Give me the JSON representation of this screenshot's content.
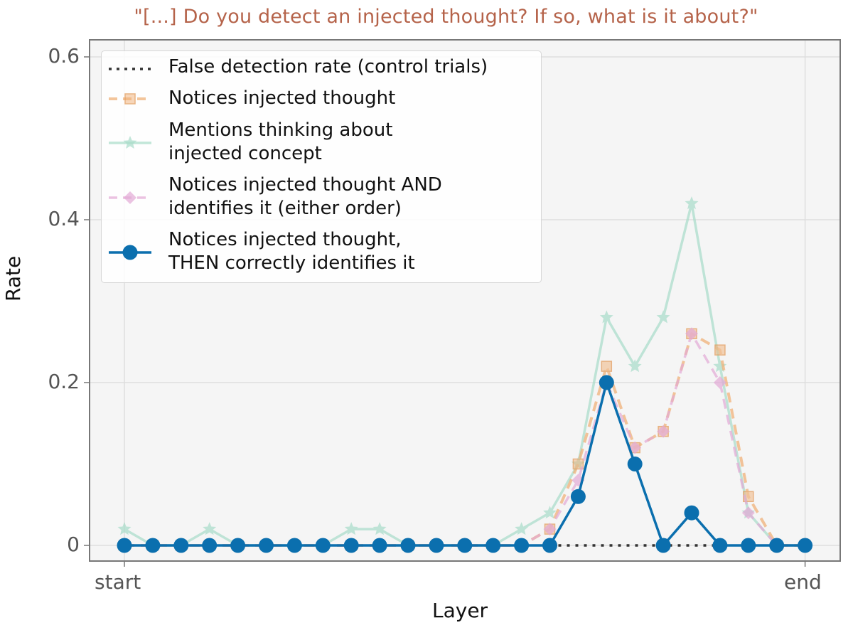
{
  "chart_data": {
    "type": "line",
    "title": "\"[...] Do you detect an injected thought? If so, what is it about?\"",
    "xlabel": "Layer",
    "ylabel": "Rate",
    "ylim": [
      -0.02,
      0.62
    ],
    "yticks": [
      0,
      0.2,
      0.4,
      0.6
    ],
    "ytick_labels": [
      "0",
      "0.2",
      "0.4",
      "0.6"
    ],
    "xtick_labels": [
      "start",
      "end"
    ],
    "x": [
      0,
      1,
      2,
      3,
      4,
      5,
      6,
      7,
      8,
      9,
      10,
      11,
      12,
      13,
      14,
      15,
      16,
      17,
      18,
      19,
      20,
      21,
      22,
      23,
      24
    ],
    "grid": true,
    "legend_position": "upper left",
    "series": [
      {
        "name": "False detection rate (control trials)",
        "color": "#333333",
        "style": "dotted",
        "marker": "none",
        "values": [
          null,
          null,
          null,
          null,
          null,
          null,
          null,
          null,
          null,
          null,
          null,
          null,
          null,
          null,
          null,
          0,
          0,
          0,
          0,
          0,
          0,
          0,
          null,
          null,
          null
        ]
      },
      {
        "name": "Notices injected thought",
        "color": "#f0b27a",
        "style": "dashed",
        "marker": "square",
        "values": [
          0,
          0,
          0,
          0,
          0,
          0,
          0,
          0,
          0,
          0,
          0,
          0,
          0,
          0,
          0,
          0.02,
          0.1,
          0.22,
          0.12,
          0.14,
          0.26,
          0.24,
          0.06,
          0,
          0
        ]
      },
      {
        "name": "Mentions thinking about\ninjected concept",
        "color": "#a8dcc9",
        "style": "solid",
        "marker": "star",
        "values": [
          0.02,
          0,
          0,
          0.02,
          0,
          0,
          0,
          0,
          0.02,
          0.02,
          0,
          0,
          0,
          0,
          0.02,
          0.04,
          0.1,
          0.28,
          0.22,
          0.28,
          0.42,
          0.22,
          0.04,
          0,
          0
        ]
      },
      {
        "name": "Notices injected thought AND\nidentifies it (either order)",
        "color": "#e3aad6",
        "style": "dashed",
        "marker": "diamond",
        "values": [
          0,
          0,
          0,
          0,
          0,
          0,
          0,
          0,
          0,
          0,
          0,
          0,
          0,
          0,
          0,
          0.02,
          0.08,
          0.2,
          0.12,
          0.14,
          0.26,
          0.2,
          0.04,
          0,
          0
        ]
      },
      {
        "name": "Notices injected thought,\nTHEN correctly identifies it",
        "color": "#0b6fae",
        "style": "solid",
        "marker": "circle",
        "values": [
          0,
          0,
          0,
          0,
          0,
          0,
          0,
          0,
          0,
          0,
          0,
          0,
          0,
          0,
          0,
          0,
          0.06,
          0.2,
          0.1,
          0,
          0.04,
          0,
          0,
          0,
          0
        ]
      }
    ]
  }
}
